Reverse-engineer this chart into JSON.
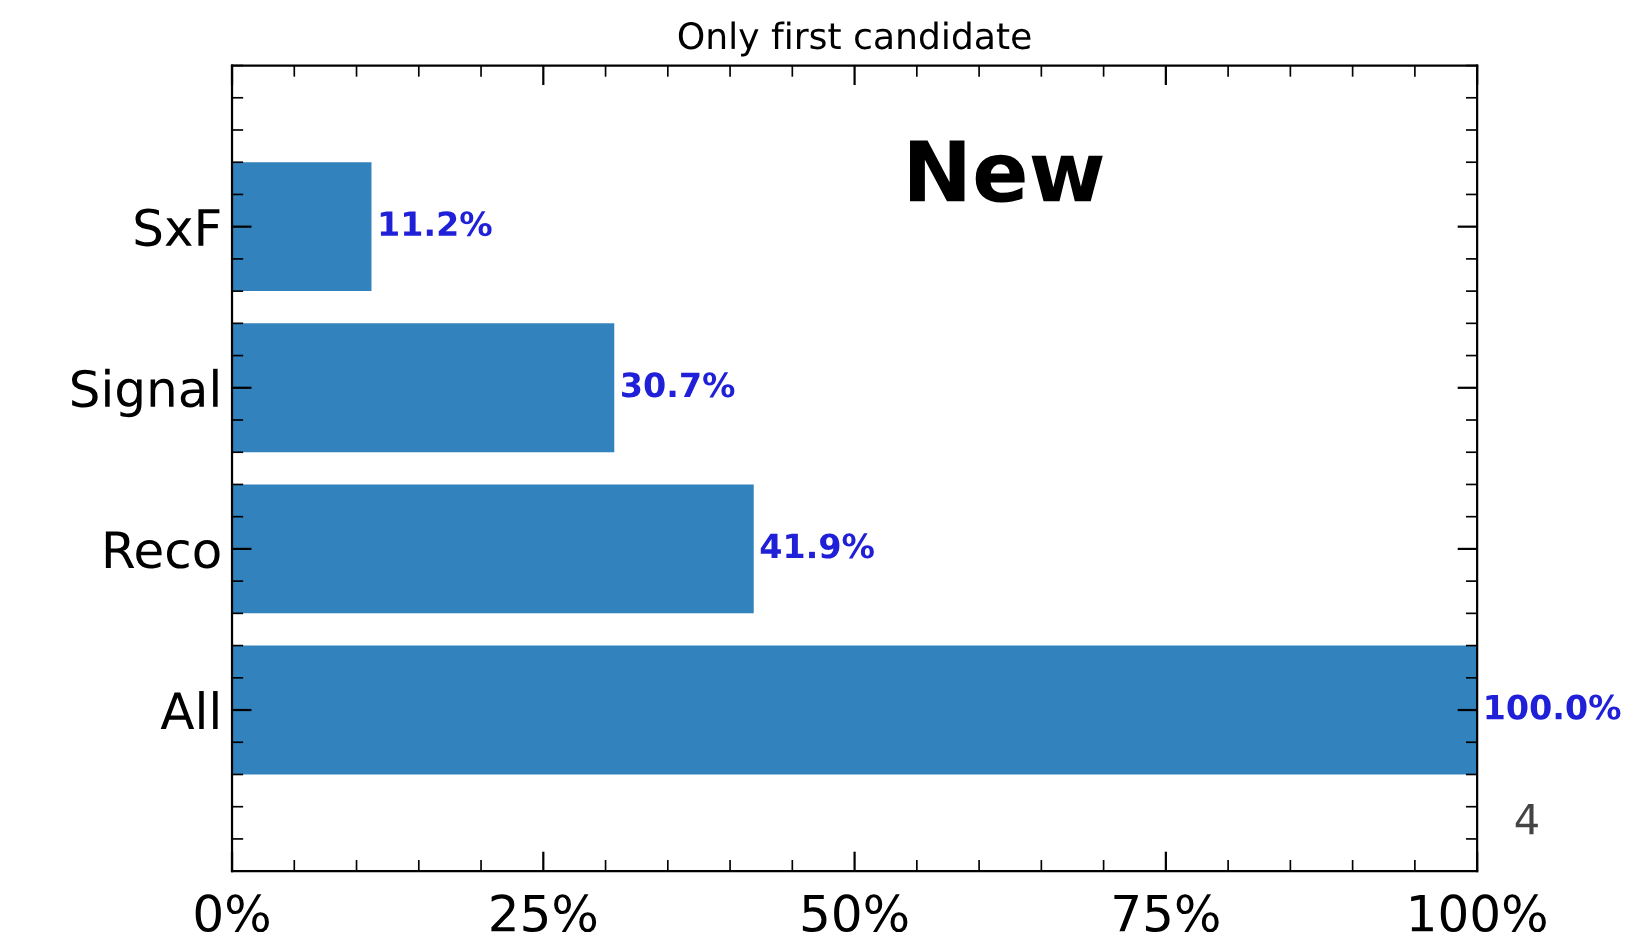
{
  "chart_data": {
    "type": "bar",
    "orientation": "horizontal",
    "title": "Only first candidate",
    "categories": [
      "SxF",
      "Signal",
      "Reco",
      "All"
    ],
    "values": [
      11.2,
      30.7,
      41.9,
      100.0
    ],
    "value_labels": [
      "11.2%",
      "30.7%",
      "41.9%",
      "100.0%"
    ],
    "color": "#3182bd",
    "xlim": [
      0,
      100
    ],
    "xticks": [
      {
        "value": 0,
        "label": "0%"
      },
      {
        "value": 25,
        "label": "25%"
      },
      {
        "value": 50,
        "label": "50%"
      },
      {
        "value": 75,
        "label": "75%"
      },
      {
        "value": 100,
        "label": "100%"
      }
    ],
    "annotations": [
      "New",
      "4"
    ],
    "grid": false,
    "legend": false
  }
}
